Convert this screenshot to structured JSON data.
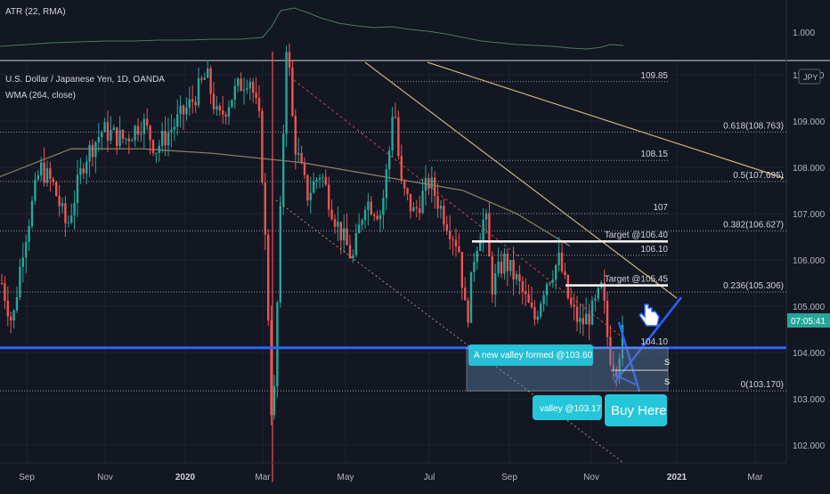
{
  "atr_indicator": {
    "label": "ATR (22, RMA)",
    "axis_value": "1.000"
  },
  "chart_title": "U.S. Dollar / Japanese Yen, 1D, OANDA",
  "wma_indicator": "WMA (264, close)",
  "currency_badge": "JPY",
  "current_price_label": "07:05:41",
  "chart_data": {
    "type": "candlestick",
    "y_axis_ticks": [
      "110.000",
      "109.000",
      "108.000",
      "107.000",
      "106.000",
      "105.000",
      "104.000",
      "103.000",
      "102.000"
    ],
    "x_axis_ticks": [
      "Sep",
      "Nov",
      "2020",
      "Mar",
      "May",
      "Jul",
      "Sep",
      "Nov",
      "2021",
      "Mar"
    ],
    "ylim": [
      101.6,
      110.2
    ],
    "level_labels": [
      "109.85",
      "108.15",
      "107",
      "106.10",
      "104.10"
    ],
    "fib_levels": [
      {
        "label": "0.618(108.763)",
        "value": 108.763
      },
      {
        "label": "0.5(107.695)",
        "value": 107.695
      },
      {
        "label": "0.382(106.627)",
        "value": 106.627
      },
      {
        "label": "0.236(105.306)",
        "value": 105.306
      },
      {
        "label": "0(103.170)",
        "value": 103.17
      }
    ],
    "targets": [
      {
        "label": "Target @106.40",
        "value": 106.4
      },
      {
        "label": "Target @105.45",
        "value": 105.45
      }
    ],
    "annotations": {
      "new_valley": "A new valley formed  @103.60",
      "valley": "valley @103.17",
      "buy": "Buy Here",
      "support_marks": [
        "S",
        "S"
      ]
    }
  },
  "colors": {
    "up": "#26a69a",
    "down": "#ef5350",
    "accent": "#2962ff",
    "callout": "#26c6da",
    "fib": "#c9b27c"
  }
}
